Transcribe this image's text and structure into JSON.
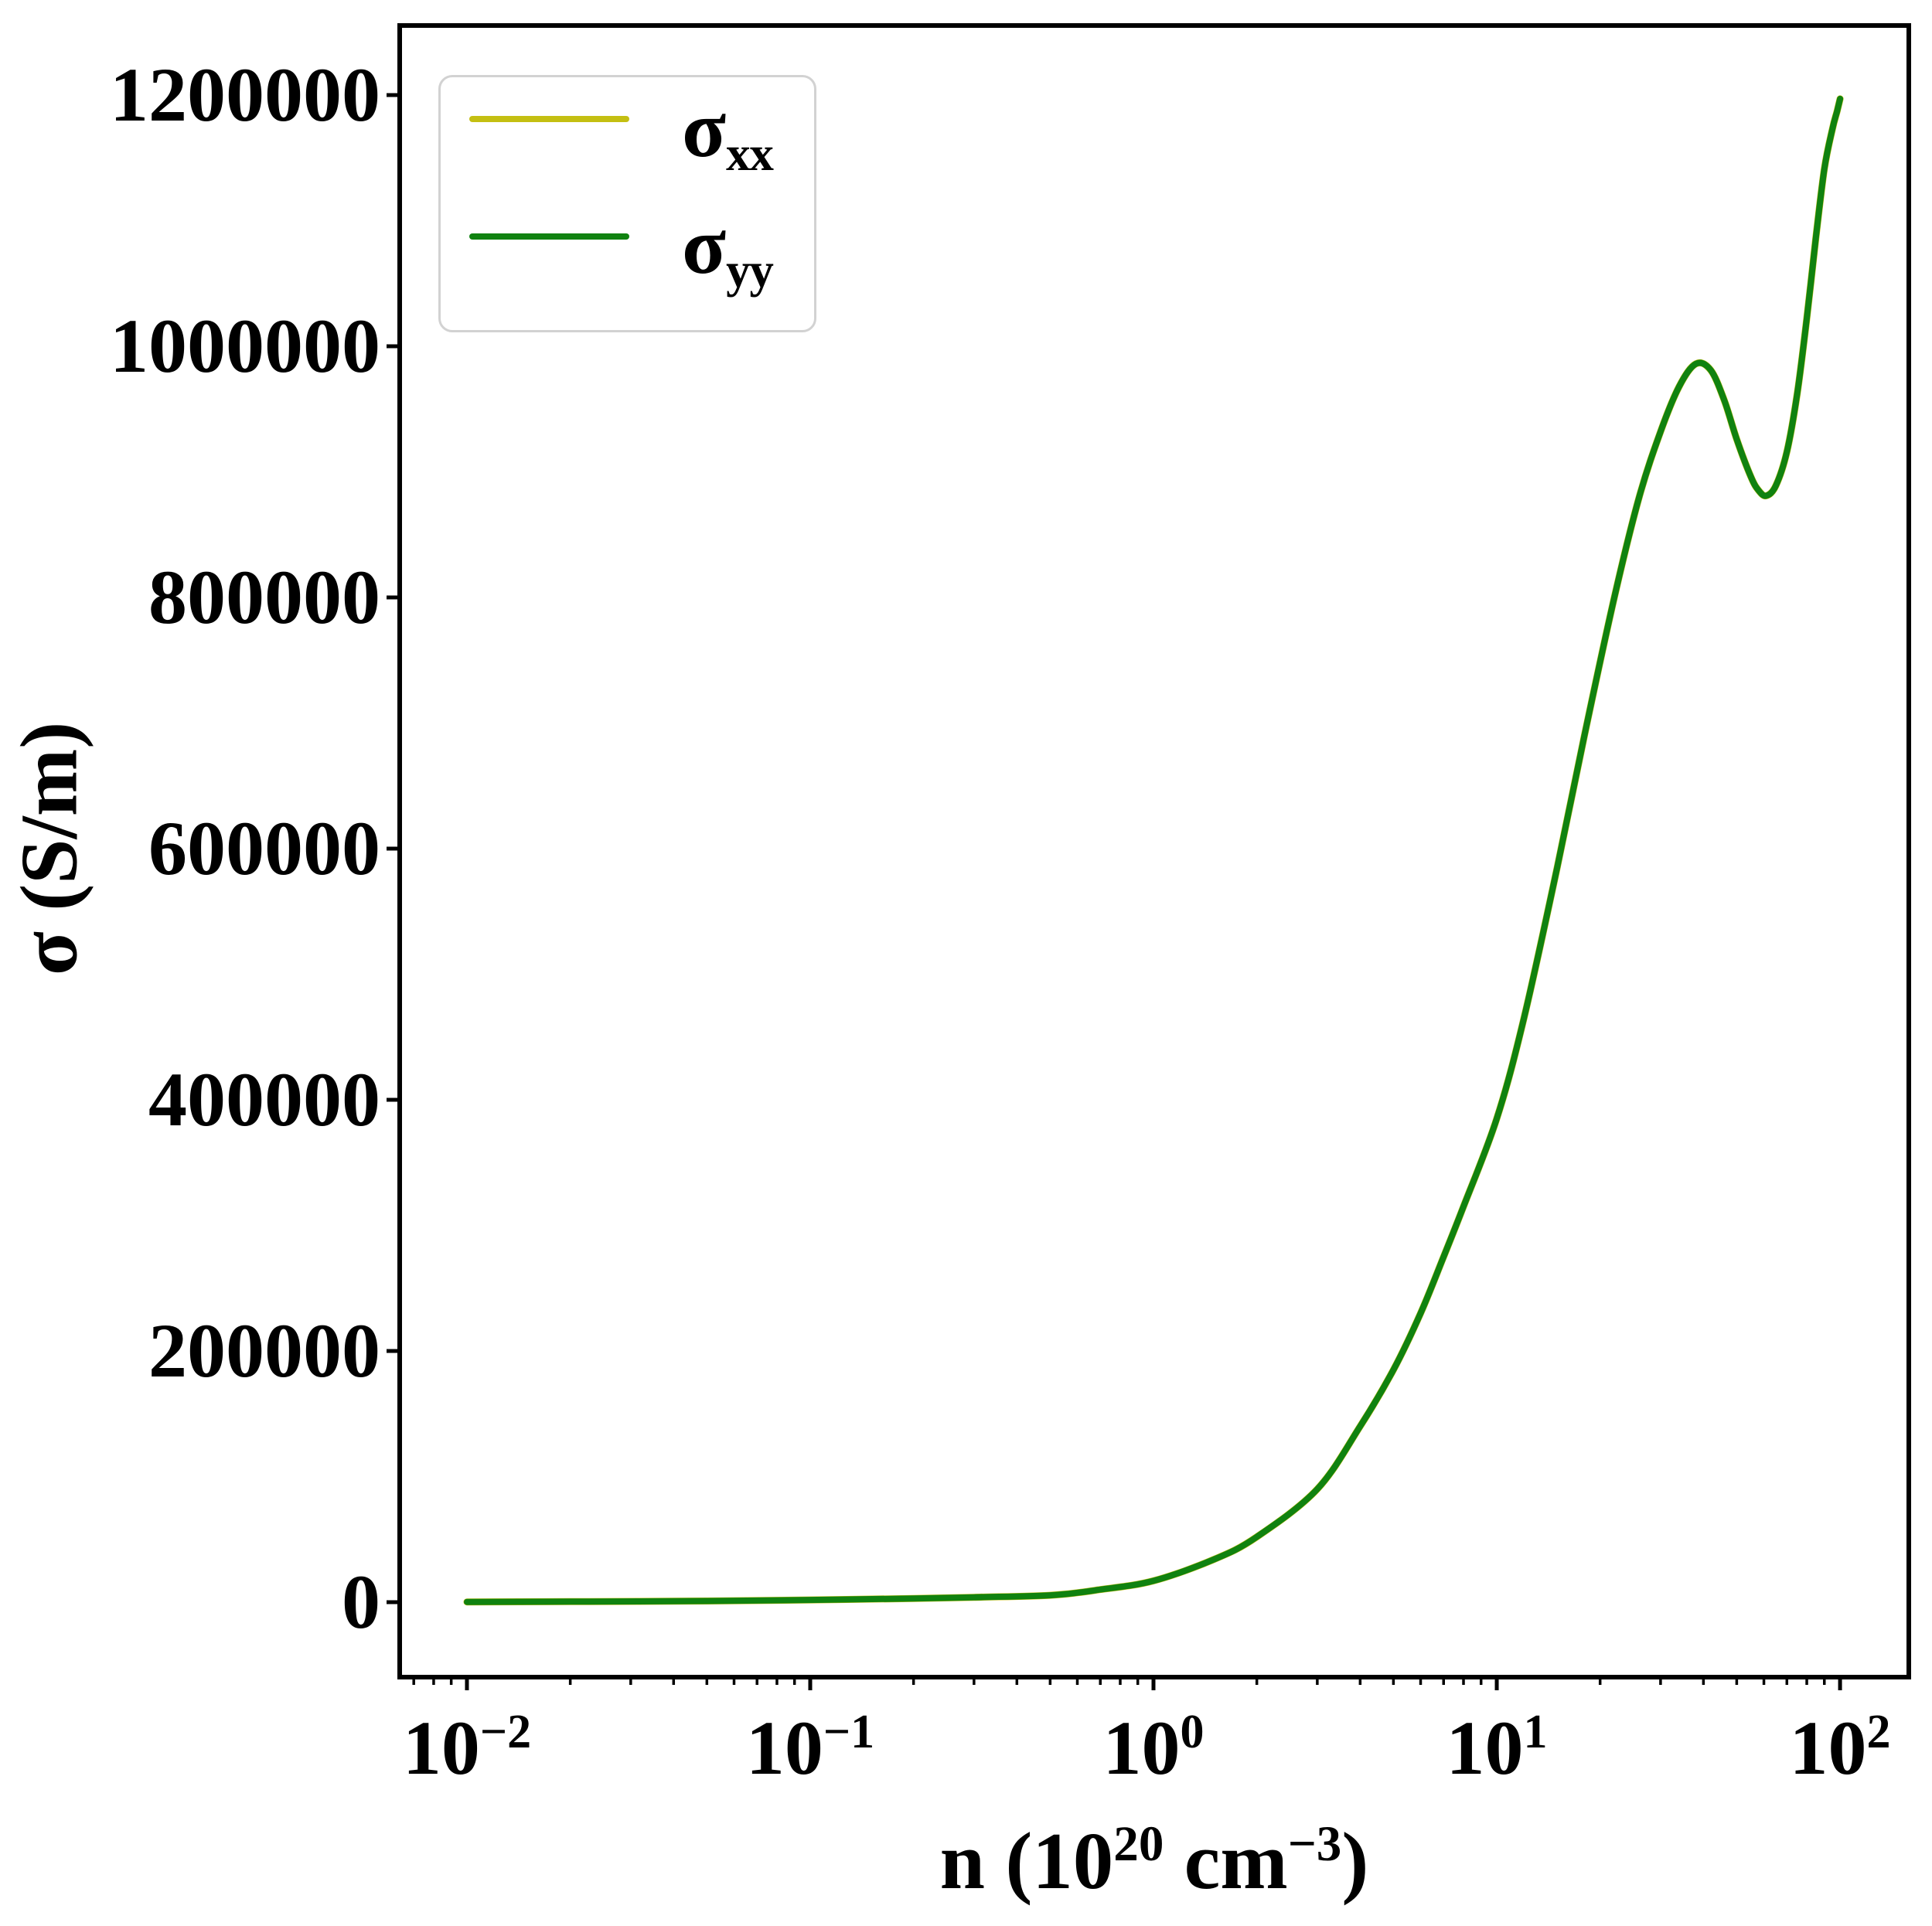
{
  "figure": {
    "ylabel": "σ (S/m)",
    "xlabel": {
      "prefix": "n (10",
      "sup1": "20",
      "mid": " cm",
      "sup2": "−3",
      "suffix": ")"
    },
    "legend": {
      "items": [
        {
          "base": "σ",
          "sub": "xx",
          "color": "#c4bf12"
        },
        {
          "base": "σ",
          "sub": "yy",
          "color": "#108210"
        }
      ]
    }
  },
  "chart_data": {
    "type": "line",
    "title": "",
    "xlabel": "n (10^20 cm^-3)",
    "ylabel": "σ (S/m)",
    "x_scale": "log",
    "y_scale": "linear",
    "grid": false,
    "legend_position": "upper left",
    "xlim": [
      0.00637,
      158.6
    ],
    "ylim": [
      -59700,
      1255400
    ],
    "x_tick_exponents": [
      -2,
      -1,
      0,
      1,
      2
    ],
    "y_ticks": [
      {
        "value": 0,
        "label": "0"
      },
      {
        "value": 200000,
        "label": "200000"
      },
      {
        "value": 400000,
        "label": "400000"
      },
      {
        "value": 600000,
        "label": "600000"
      },
      {
        "value": 800000,
        "label": "800000"
      },
      {
        "value": 1000000,
        "label": "1000000"
      },
      {
        "value": 1200000,
        "label": "1200000"
      }
    ],
    "x": [
      0.01,
      0.02,
      0.05,
      0.1,
      0.2,
      0.3,
      0.5,
      0.7,
      1,
      1.5,
      2,
      3,
      4,
      5,
      6,
      7,
      8,
      10,
      12,
      15,
      18,
      22,
      26,
      30,
      34,
      38,
      42,
      46,
      50,
      55,
      58,
      61,
      65,
      70,
      75,
      80,
      85,
      90,
      95,
      98,
      100
    ],
    "series": [
      {
        "name": "σxx",
        "color": "#c4bf12",
        "linewidth": 9,
        "values": [
          200,
          400,
          900,
          1800,
          2900,
          3900,
          5500,
          10000,
          17000,
          34000,
          52000,
          90000,
          140000,
          185000,
          230000,
          275000,
          315000,
          385000,
          465000,
          585000,
          690000,
          800000,
          880000,
          932000,
          968000,
          986000,
          981000,
          957000,
          926000,
          896000,
          885000,
          881000,
          889000,
          916000,
          962000,
          1022000,
          1086000,
          1141000,
          1173000,
          1187000,
          1197000
        ]
      },
      {
        "name": "σyy",
        "color": "#108210",
        "linewidth": 8,
        "values": [
          200,
          400,
          900,
          1800,
          2900,
          3900,
          5500,
          10000,
          17000,
          34000,
          52000,
          90000,
          140000,
          185000,
          230000,
          275000,
          315000,
          385000,
          465000,
          585000,
          690000,
          800000,
          880000,
          932000,
          968000,
          986000,
          981000,
          957000,
          926000,
          896000,
          885000,
          881000,
          889000,
          916000,
          962000,
          1022000,
          1086000,
          1141000,
          1173000,
          1187000,
          1197000
        ]
      }
    ],
    "annotations": {
      "local_max": {
        "n": 38,
        "sigma": 986000
      },
      "local_min": {
        "n": 61,
        "sigma": 881000
      },
      "end_point": {
        "n": 100,
        "sigma": 1197000
      }
    }
  }
}
